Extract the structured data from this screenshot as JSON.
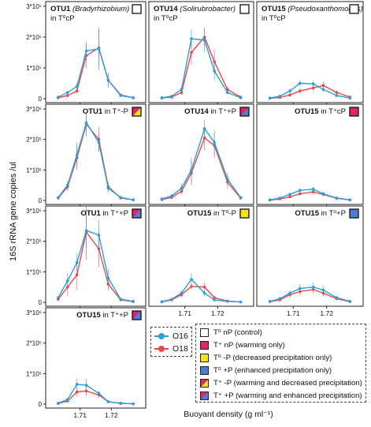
{
  "figure": {
    "y_title": "16S rRNA gene copies /ul",
    "x_title": "Buoyant density (g ml⁻¹)"
  },
  "legend_otu": [
    {
      "label": "O16",
      "color": "#2a9fd8"
    },
    {
      "label": "O18",
      "color": "#e8484e"
    }
  ],
  "legend_treatments": [
    {
      "label": "T⁰ nP (control)",
      "swatch": "white"
    },
    {
      "label": "T⁺ nP (warming only)",
      "swatch": "red"
    },
    {
      "label": "T⁰ -P (decreased precipitation only)",
      "swatch": "yellow"
    },
    {
      "label": "T⁰ +P (enhanced precipitation only)",
      "swatch": "blue"
    },
    {
      "label": "T⁺ -P (warming and decreased precipitation)",
      "swatch": "red-yellow"
    },
    {
      "label": "T⁺ +P (warming and enhanced precipitation)",
      "swatch": "red-blue"
    }
  ],
  "colors": {
    "o16": "#2a9fd8",
    "o18": "#e8484e",
    "white": "#ffffff",
    "red": "#e0256a",
    "yellow": "#f7e11b",
    "blue": "#4c7ed8"
  },
  "chart_data": [
    {
      "type": "line",
      "title_bold": "OTU1",
      "title_rest": " (Bradyrhizobium)",
      "title_line2": "in T⁰cP",
      "swatch": "white",
      "x": [
        1.703,
        1.706,
        1.709,
        1.712,
        1.716,
        1.719,
        1.723,
        1.727
      ],
      "series": [
        {
          "name": "O16",
          "values": [
            5000,
            20000,
            40000,
            155000,
            162000,
            60000,
            10000,
            3000
          ],
          "err": [
            2000,
            5000,
            12000,
            30000,
            70000,
            25000,
            4000,
            1000
          ]
        },
        {
          "name": "O18",
          "values": [
            3000,
            10000,
            25000,
            140000,
            165000,
            60000,
            12000,
            3000
          ],
          "err": [
            1000,
            4000,
            8000,
            40000,
            60000,
            20000,
            5000,
            1000
          ]
        }
      ]
    },
    {
      "type": "line",
      "title_bold": "OTU14",
      "title_rest": " (Solirubrobacter)",
      "title_line2": "in T⁰cP",
      "swatch": "white",
      "x": [
        1.703,
        1.706,
        1.709,
        1.712,
        1.716,
        1.719,
        1.723,
        1.727
      ],
      "series": [
        {
          "name": "O16",
          "values": [
            3000,
            8000,
            30000,
            195000,
            190000,
            90000,
            20000,
            3000
          ],
          "err": [
            1000,
            3000,
            10000,
            30000,
            40000,
            30000,
            8000,
            1000
          ]
        },
        {
          "name": "O18",
          "values": [
            2000,
            5000,
            20000,
            150000,
            200000,
            120000,
            30000,
            5000
          ],
          "err": [
            1000,
            2000,
            8000,
            40000,
            30000,
            40000,
            10000,
            2000
          ]
        }
      ]
    },
    {
      "type": "line",
      "title_bold": "OTU15",
      "title_rest": " (Pseudoxanthomonas)",
      "title_line2": "in T⁰cP",
      "swatch": "white",
      "x": [
        1.703,
        1.706,
        1.709,
        1.712,
        1.716,
        1.719,
        1.723,
        1.727
      ],
      "series": [
        {
          "name": "O16",
          "values": [
            2000,
            8000,
            25000,
            50000,
            48000,
            30000,
            10000,
            2000
          ],
          "err": [
            1000,
            3000,
            8000,
            10000,
            10000,
            8000,
            4000,
            1000
          ]
        },
        {
          "name": "O18",
          "values": [
            1000,
            4000,
            12000,
            25000,
            35000,
            43000,
            20000,
            5000
          ],
          "err": [
            500,
            2000,
            5000,
            8000,
            10000,
            12000,
            6000,
            2000
          ]
        }
      ]
    },
    {
      "type": "line",
      "title_bold": "OTU1",
      "title_rest": " in T⁺-P",
      "title_line2": "",
      "swatch": "red-yellow",
      "x": [
        1.703,
        1.706,
        1.709,
        1.712,
        1.716,
        1.719,
        1.723,
        1.727
      ],
      "series": [
        {
          "name": "O16",
          "values": [
            10000,
            50000,
            150000,
            255000,
            190000,
            40000,
            10000,
            2000
          ],
          "err": [
            3000,
            15000,
            40000,
            30000,
            30000,
            15000,
            5000,
            1000
          ]
        },
        {
          "name": "O18",
          "values": [
            8000,
            45000,
            140000,
            250000,
            200000,
            45000,
            8000,
            2000
          ],
          "err": [
            3000,
            15000,
            40000,
            40000,
            40000,
            15000,
            4000,
            1000
          ]
        }
      ]
    },
    {
      "type": "line",
      "title_bold": "OTU14",
      "title_rest": " in T⁺+P",
      "title_line2": "",
      "swatch": "red-blue",
      "x": [
        1.703,
        1.706,
        1.709,
        1.712,
        1.716,
        1.719,
        1.723,
        1.727
      ],
      "series": [
        {
          "name": "O16",
          "values": [
            5000,
            15000,
            40000,
            100000,
            235000,
            190000,
            70000,
            10000
          ],
          "err": [
            2000,
            5000,
            15000,
            40000,
            30000,
            40000,
            20000,
            4000
          ]
        },
        {
          "name": "O18",
          "values": [
            3000,
            10000,
            30000,
            90000,
            205000,
            180000,
            60000,
            8000
          ],
          "err": [
            1000,
            4000,
            10000,
            40000,
            40000,
            40000,
            20000,
            3000
          ]
        }
      ]
    },
    {
      "type": "line",
      "title_bold": "OTU15",
      "title_rest": " in T⁺cP",
      "title_line2": "",
      "swatch": "red",
      "x": [
        1.703,
        1.706,
        1.709,
        1.712,
        1.716,
        1.719,
        1.723,
        1.727
      ],
      "series": [
        {
          "name": "O16",
          "values": [
            2000,
            8000,
            20000,
            33000,
            37000,
            22000,
            8000,
            2000
          ],
          "err": [
            1000,
            3000,
            6000,
            8000,
            8000,
            6000,
            3000,
            1000
          ]
        },
        {
          "name": "O18",
          "values": [
            1000,
            5000,
            12000,
            22000,
            28000,
            20000,
            7000,
            2000
          ],
          "err": [
            500,
            2000,
            4000,
            6000,
            8000,
            6000,
            3000,
            1000
          ]
        }
      ]
    },
    {
      "type": "line",
      "title_bold": "OTU1",
      "title_rest": " in T⁺+P",
      "title_line2": "",
      "swatch": "red-blue",
      "x": [
        1.703,
        1.706,
        1.709,
        1.712,
        1.716,
        1.719,
        1.723,
        1.727
      ],
      "series": [
        {
          "name": "O16",
          "values": [
            15000,
            70000,
            130000,
            235000,
            220000,
            80000,
            10000,
            3000
          ],
          "err": [
            5000,
            25000,
            30000,
            60000,
            50000,
            30000,
            5000,
            1000
          ]
        },
        {
          "name": "O18",
          "values": [
            10000,
            50000,
            90000,
            230000,
            175000,
            60000,
            8000,
            2000
          ],
          "err": [
            5000,
            30000,
            50000,
            90000,
            60000,
            20000,
            4000,
            1000
          ]
        }
      ]
    },
    {
      "type": "line",
      "title_bold": "OTU15",
      "title_rest": " in T⁰-P",
      "title_line2": "",
      "swatch": "yellow",
      "x": [
        1.703,
        1.706,
        1.709,
        1.712,
        1.716,
        1.719,
        1.723,
        1.727
      ],
      "series": [
        {
          "name": "O16",
          "values": [
            2000,
            10000,
            30000,
            75000,
            30000,
            8000,
            3000,
            1000
          ],
          "err": [
            1000,
            4000,
            10000,
            20000,
            10000,
            4000,
            2000,
            500
          ]
        },
        {
          "name": "O18",
          "values": [
            1000,
            8000,
            25000,
            52000,
            50000,
            15000,
            4000,
            1000
          ],
          "err": [
            500,
            3000,
            10000,
            10000,
            15000,
            6000,
            2000,
            500
          ]
        }
      ]
    },
    {
      "type": "line",
      "title_bold": "OTU15",
      "title_rest": " in T⁰+P",
      "title_line2": "",
      "swatch": "blue",
      "x": [
        1.703,
        1.706,
        1.709,
        1.712,
        1.716,
        1.719,
        1.723,
        1.727
      ],
      "series": [
        {
          "name": "O16",
          "values": [
            3000,
            12000,
            30000,
            45000,
            50000,
            40000,
            15000,
            3000
          ],
          "err": [
            1000,
            5000,
            10000,
            15000,
            15000,
            10000,
            6000,
            1000
          ]
        },
        {
          "name": "O18",
          "values": [
            2000,
            8000,
            25000,
            35000,
            42000,
            30000,
            12000,
            2000
          ],
          "err": [
            1000,
            4000,
            10000,
            12000,
            12000,
            10000,
            5000,
            1000
          ]
        }
      ]
    },
    {
      "type": "line",
      "title_bold": "OTU15",
      "title_rest": " in T⁺+P",
      "title_line2": "",
      "swatch": "red-blue",
      "x": [
        1.703,
        1.706,
        1.709,
        1.712,
        1.716,
        1.719,
        1.723,
        1.727
      ],
      "series": [
        {
          "name": "O16",
          "values": [
            3000,
            15000,
            65000,
            62000,
            35000,
            8000,
            3000,
            1000
          ],
          "err": [
            1000,
            5000,
            20000,
            20000,
            10000,
            4000,
            2000,
            500
          ]
        },
        {
          "name": "O18",
          "values": [
            2000,
            10000,
            40000,
            43000,
            30000,
            8000,
            2000,
            1000
          ],
          "err": [
            1000,
            4000,
            15000,
            15000,
            10000,
            3000,
            1000,
            500
          ]
        }
      ]
    }
  ],
  "axes": {
    "y_ticks": [
      0,
      100000,
      200000,
      300000
    ],
    "y_tick_labels": [
      "0",
      "1*10⁵",
      "2*10⁵",
      "3*10⁵"
    ],
    "ylim": [
      0,
      300000
    ],
    "x_ticks": [
      1.71,
      1.72
    ],
    "x_tick_labels": [
      "1.71",
      "1.72"
    ],
    "xlim": [
      1.7,
      1.73
    ]
  }
}
